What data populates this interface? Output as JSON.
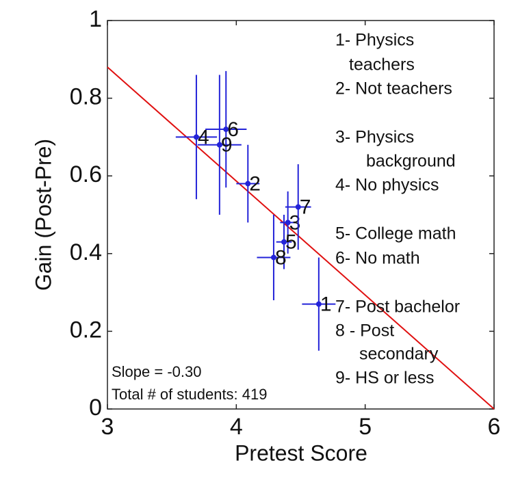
{
  "chart_data": {
    "type": "scatter",
    "xlabel": "Pretest Score",
    "ylabel": "Gain (Post-Pre)",
    "xlim": [
      3,
      6
    ],
    "ylim": [
      0,
      1
    ],
    "xticks": [
      3,
      4,
      5,
      6
    ],
    "yticks": [
      0,
      0.2,
      0.4,
      0.6,
      0.8,
      1
    ],
    "color": "#2323d8",
    "point_labels": [
      "1",
      "2",
      "3",
      "4",
      "5",
      "6",
      "7",
      "8",
      "9"
    ],
    "x": [
      4.64,
      4.09,
      4.4,
      3.69,
      4.37,
      3.92,
      4.48,
      4.29,
      3.87
    ],
    "values": [
      0.27,
      0.58,
      0.48,
      0.7,
      0.43,
      0.72,
      0.52,
      0.39,
      0.68
    ],
    "x_err": [
      0.13,
      0.09,
      0.06,
      0.16,
      0.06,
      0.16,
      0.1,
      0.13,
      0.17
    ],
    "y_err": [
      0.12,
      0.1,
      0.08,
      0.16,
      0.07,
      0.15,
      0.11,
      0.11,
      0.18
    ],
    "fit": {
      "x": [
        3,
        6
      ],
      "values": [
        0.88,
        0
      ],
      "color": "#e01010"
    },
    "notes": [
      "1- Physics",
      "teachers",
      "2- Not teachers",
      "3- Physics",
      "background",
      "4- No physics",
      "5- College math",
      "6- No math",
      "7- Post bachelor",
      "8 - Post",
      "secondary",
      "9- HS or less"
    ],
    "annotations": [
      "Slope = -0.30",
      "Total # of students: 419"
    ]
  }
}
